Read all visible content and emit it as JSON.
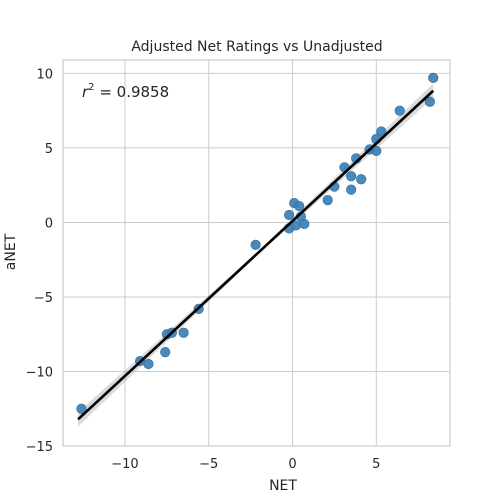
{
  "chart_data": {
    "type": "scatter",
    "title": "Adjusted Net Ratings vs Unadjusted",
    "xlabel": "NET",
    "ylabel": "aNET",
    "xlim": [
      -13.7,
      9.4
    ],
    "ylim": [
      -15,
      10.9
    ],
    "x_ticks": [
      -10,
      -5,
      0,
      5
    ],
    "x_tick_labels": [
      "−10",
      "−5",
      "0",
      "5"
    ],
    "y_ticks": [
      -15,
      -10,
      -5,
      0,
      5,
      10
    ],
    "y_tick_labels": [
      "−15",
      "−10",
      "−5",
      "0",
      "5",
      "10"
    ],
    "grid": true,
    "annotation": {
      "prefix": "r",
      "superscript": "2",
      "text": " = 0.9858"
    },
    "point_color": "#3b7fb6",
    "line_color": "#000000",
    "band_color": "#b0b0b0",
    "fit": {
      "x_range": [
        -12.8,
        8.4
      ],
      "slope": 1.04,
      "intercept": 0.1
    },
    "points": [
      {
        "x": -12.6,
        "y": -12.5
      },
      {
        "x": -9.1,
        "y": -9.3
      },
      {
        "x": -8.6,
        "y": -9.5
      },
      {
        "x": -7.6,
        "y": -8.7
      },
      {
        "x": -7.5,
        "y": -7.5
      },
      {
        "x": -7.2,
        "y": -7.4
      },
      {
        "x": -6.5,
        "y": -7.4
      },
      {
        "x": -5.6,
        "y": -5.8
      },
      {
        "x": -2.2,
        "y": -1.5
      },
      {
        "x": -0.2,
        "y": -0.4
      },
      {
        "x": -0.2,
        "y": 0.5
      },
      {
        "x": 0.1,
        "y": 1.3
      },
      {
        "x": 0.2,
        "y": -0.2
      },
      {
        "x": 0.4,
        "y": 1.1
      },
      {
        "x": 0.5,
        "y": 0.4
      },
      {
        "x": 0.7,
        "y": -0.1
      },
      {
        "x": 2.1,
        "y": 1.5
      },
      {
        "x": 2.5,
        "y": 2.4
      },
      {
        "x": 3.1,
        "y": 3.7
      },
      {
        "x": 3.5,
        "y": 3.1
      },
      {
        "x": 3.5,
        "y": 2.2
      },
      {
        "x": 3.8,
        "y": 4.3
      },
      {
        "x": 4.1,
        "y": 2.9
      },
      {
        "x": 4.6,
        "y": 4.9
      },
      {
        "x": 5.0,
        "y": 5.6
      },
      {
        "x": 5.0,
        "y": 4.8
      },
      {
        "x": 5.3,
        "y": 6.1
      },
      {
        "x": 6.4,
        "y": 7.5
      },
      {
        "x": 8.2,
        "y": 8.1
      },
      {
        "x": 8.4,
        "y": 9.7
      }
    ]
  }
}
